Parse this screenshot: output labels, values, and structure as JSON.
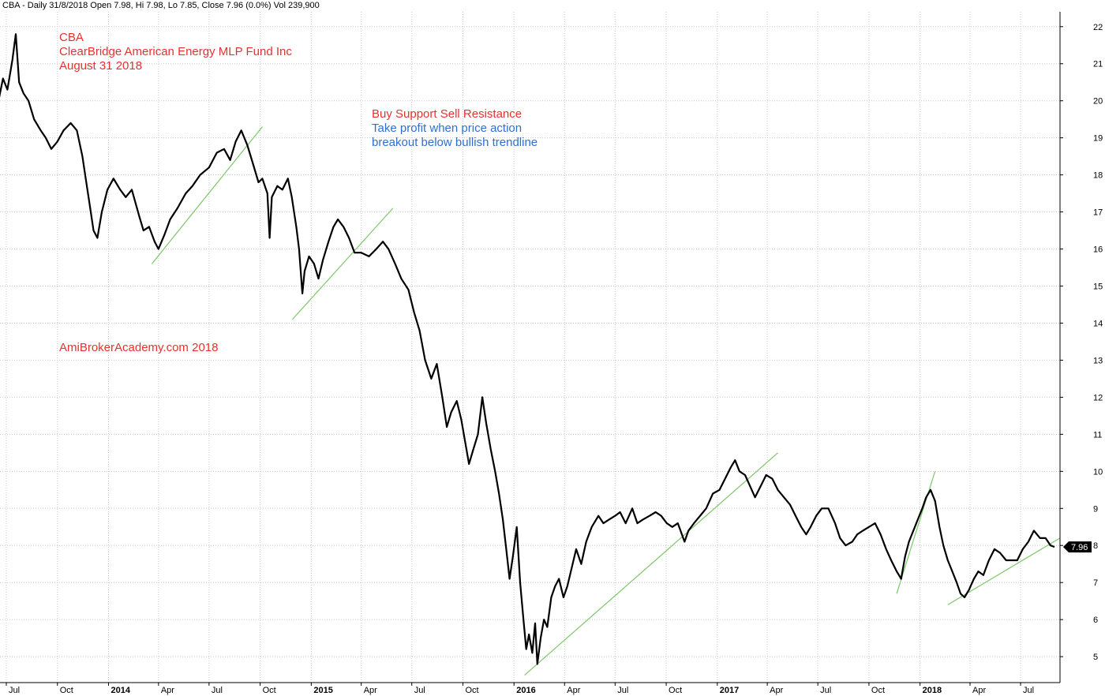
{
  "header": {
    "text": "CBA - Daily 31/8/2018 Open 7.98, Hi 7.98, Lo 7.85, Close 7.96 (0.0%) Vol 239,900"
  },
  "annotations": {
    "ticker": "CBA",
    "company": "ClearBridge American Energy MLP Fund Inc",
    "date": "August 31 2018",
    "strategy_line1": "Buy Support Sell Resistance",
    "strategy_line2": "Take profit when price action",
    "strategy_line3": "breakout below bullish trendline",
    "watermark": "AmiBrokerAcademy.com  2018"
  },
  "last_price_label": "7.96",
  "colors": {
    "price": "#000000",
    "trendline": "#7cc76a",
    "grid": "#c8c8c8",
    "annotation_red": "#e8312f",
    "annotation_blue": "#2f6fd0"
  },
  "chart_data": {
    "type": "line",
    "ylim": [
      4.3,
      22.4
    ],
    "y_ticks": [
      5,
      6,
      7,
      8,
      9,
      10,
      11,
      12,
      13,
      14,
      15,
      16,
      17,
      18,
      19,
      20,
      21,
      22
    ],
    "x_range": [
      "2013-07-01",
      "2018-09-10"
    ],
    "x_ticks": [
      {
        "label": "Jul",
        "date": "2013-07-01",
        "bold": false
      },
      {
        "label": "Oct",
        "date": "2013-10-01",
        "bold": false
      },
      {
        "label": "2014",
        "date": "2014-01-01",
        "bold": true
      },
      {
        "label": "Apr",
        "date": "2014-04-01",
        "bold": false
      },
      {
        "label": "Jul",
        "date": "2014-07-01",
        "bold": false
      },
      {
        "label": "Oct",
        "date": "2014-10-01",
        "bold": false
      },
      {
        "label": "2015",
        "date": "2015-01-01",
        "bold": true
      },
      {
        "label": "Apr",
        "date": "2015-04-01",
        "bold": false
      },
      {
        "label": "Jul",
        "date": "2015-07-01",
        "bold": false
      },
      {
        "label": "Oct",
        "date": "2015-10-01",
        "bold": false
      },
      {
        "label": "2016",
        "date": "2016-01-01",
        "bold": true
      },
      {
        "label": "Apr",
        "date": "2016-04-01",
        "bold": false
      },
      {
        "label": "Jul",
        "date": "2016-07-01",
        "bold": false
      },
      {
        "label": "Oct",
        "date": "2016-10-01",
        "bold": false
      },
      {
        "label": "2017",
        "date": "2017-01-01",
        "bold": true
      },
      {
        "label": "Apr",
        "date": "2017-04-01",
        "bold": false
      },
      {
        "label": "Jul",
        "date": "2017-07-01",
        "bold": false
      },
      {
        "label": "Oct",
        "date": "2017-10-01",
        "bold": false
      },
      {
        "label": "2018",
        "date": "2018-01-01",
        "bold": true
      },
      {
        "label": "Apr",
        "date": "2018-04-01",
        "bold": false
      },
      {
        "label": "Jul",
        "date": "2018-07-01",
        "bold": false
      }
    ],
    "series": [
      {
        "points": [
          [
            "2013-06-17",
            20.0
          ],
          [
            "2013-06-25",
            20.6
          ],
          [
            "2013-07-03",
            20.3
          ],
          [
            "2013-07-12",
            21.1
          ],
          [
            "2013-07-18",
            21.8
          ],
          [
            "2013-07-24",
            20.5
          ],
          [
            "2013-08-01",
            20.2
          ],
          [
            "2013-08-10",
            20.0
          ],
          [
            "2013-08-20",
            19.5
          ],
          [
            "2013-09-01",
            19.2
          ],
          [
            "2013-09-10",
            19.0
          ],
          [
            "2013-09-20",
            18.7
          ],
          [
            "2013-10-01",
            18.9
          ],
          [
            "2013-10-12",
            19.2
          ],
          [
            "2013-10-25",
            19.4
          ],
          [
            "2013-11-05",
            19.2
          ],
          [
            "2013-11-15",
            18.5
          ],
          [
            "2013-11-20",
            18.0
          ],
          [
            "2013-11-28",
            17.2
          ],
          [
            "2013-12-05",
            16.5
          ],
          [
            "2013-12-12",
            16.3
          ],
          [
            "2013-12-20",
            17.0
          ],
          [
            "2013-12-30",
            17.6
          ],
          [
            "2014-01-10",
            17.9
          ],
          [
            "2014-01-22",
            17.6
          ],
          [
            "2014-02-01",
            17.4
          ],
          [
            "2014-02-12",
            17.6
          ],
          [
            "2014-02-25",
            16.9
          ],
          [
            "2014-03-05",
            16.5
          ],
          [
            "2014-03-15",
            16.6
          ],
          [
            "2014-03-25",
            16.2
          ],
          [
            "2014-04-01",
            16.0
          ],
          [
            "2014-04-12",
            16.4
          ],
          [
            "2014-04-22",
            16.8
          ],
          [
            "2014-05-05",
            17.1
          ],
          [
            "2014-05-20",
            17.5
          ],
          [
            "2014-06-01",
            17.7
          ],
          [
            "2014-06-15",
            18.0
          ],
          [
            "2014-07-01",
            18.2
          ],
          [
            "2014-07-15",
            18.6
          ],
          [
            "2014-07-28",
            18.7
          ],
          [
            "2014-08-08",
            18.4
          ],
          [
            "2014-08-18",
            18.9
          ],
          [
            "2014-08-28",
            19.2
          ],
          [
            "2014-09-08",
            18.8
          ],
          [
            "2014-09-18",
            18.3
          ],
          [
            "2014-09-28",
            17.8
          ],
          [
            "2014-10-05",
            17.9
          ],
          [
            "2014-10-14",
            17.5
          ],
          [
            "2014-10-18",
            16.3
          ],
          [
            "2014-10-22",
            17.4
          ],
          [
            "2014-11-01",
            17.7
          ],
          [
            "2014-11-10",
            17.6
          ],
          [
            "2014-11-20",
            17.9
          ],
          [
            "2014-11-27",
            17.4
          ],
          [
            "2014-12-05",
            16.6
          ],
          [
            "2014-12-10",
            16.0
          ],
          [
            "2014-12-16",
            14.8
          ],
          [
            "2014-12-20",
            15.4
          ],
          [
            "2014-12-28",
            15.8
          ],
          [
            "2015-01-06",
            15.6
          ],
          [
            "2015-01-14",
            15.2
          ],
          [
            "2015-01-22",
            15.7
          ],
          [
            "2015-02-01",
            16.2
          ],
          [
            "2015-02-10",
            16.6
          ],
          [
            "2015-02-18",
            16.8
          ],
          [
            "2015-02-28",
            16.6
          ],
          [
            "2015-03-10",
            16.3
          ],
          [
            "2015-03-20",
            15.9
          ],
          [
            "2015-04-01",
            15.9
          ],
          [
            "2015-04-15",
            15.8
          ],
          [
            "2015-04-28",
            16.0
          ],
          [
            "2015-05-10",
            16.2
          ],
          [
            "2015-05-20",
            16.0
          ],
          [
            "2015-06-01",
            15.6
          ],
          [
            "2015-06-12",
            15.2
          ],
          [
            "2015-06-25",
            14.9
          ],
          [
            "2015-07-05",
            14.3
          ],
          [
            "2015-07-15",
            13.8
          ],
          [
            "2015-07-25",
            13.0
          ],
          [
            "2015-08-05",
            12.5
          ],
          [
            "2015-08-15",
            12.9
          ],
          [
            "2015-08-25",
            12.0
          ],
          [
            "2015-09-02",
            11.2
          ],
          [
            "2015-09-10",
            11.6
          ],
          [
            "2015-09-20",
            11.9
          ],
          [
            "2015-09-28",
            11.4
          ],
          [
            "2015-10-05",
            10.8
          ],
          [
            "2015-10-12",
            10.2
          ],
          [
            "2015-10-20",
            10.6
          ],
          [
            "2015-10-28",
            11.0
          ],
          [
            "2015-11-05",
            12.0
          ],
          [
            "2015-11-12",
            11.3
          ],
          [
            "2015-11-20",
            10.6
          ],
          [
            "2015-11-28",
            10.0
          ],
          [
            "2015-12-05",
            9.4
          ],
          [
            "2015-12-12",
            8.7
          ],
          [
            "2015-12-18",
            7.9
          ],
          [
            "2015-12-24",
            7.1
          ],
          [
            "2015-12-30",
            7.7
          ],
          [
            "2016-01-06",
            8.5
          ],
          [
            "2016-01-12",
            7.0
          ],
          [
            "2016-01-18",
            6.0
          ],
          [
            "2016-01-23",
            5.2
          ],
          [
            "2016-01-28",
            5.6
          ],
          [
            "2016-02-03",
            5.1
          ],
          [
            "2016-02-08",
            5.9
          ],
          [
            "2016-02-12",
            4.8
          ],
          [
            "2016-02-18",
            5.5
          ],
          [
            "2016-02-24",
            6.0
          ],
          [
            "2016-03-01",
            5.8
          ],
          [
            "2016-03-08",
            6.6
          ],
          [
            "2016-03-15",
            6.9
          ],
          [
            "2016-03-22",
            7.1
          ],
          [
            "2016-03-30",
            6.6
          ],
          [
            "2016-04-06",
            6.9
          ],
          [
            "2016-04-14",
            7.4
          ],
          [
            "2016-04-22",
            7.9
          ],
          [
            "2016-05-01",
            7.5
          ],
          [
            "2016-05-10",
            8.1
          ],
          [
            "2016-05-20",
            8.5
          ],
          [
            "2016-06-01",
            8.8
          ],
          [
            "2016-06-10",
            8.6
          ],
          [
            "2016-06-20",
            8.7
          ],
          [
            "2016-07-01",
            8.8
          ],
          [
            "2016-07-10",
            8.9
          ],
          [
            "2016-07-20",
            8.6
          ],
          [
            "2016-08-01",
            9.0
          ],
          [
            "2016-08-10",
            8.6
          ],
          [
            "2016-08-20",
            8.7
          ],
          [
            "2016-09-01",
            8.8
          ],
          [
            "2016-09-12",
            8.9
          ],
          [
            "2016-09-22",
            8.8
          ],
          [
            "2016-10-02",
            8.6
          ],
          [
            "2016-10-12",
            8.5
          ],
          [
            "2016-10-22",
            8.6
          ],
          [
            "2016-11-03",
            8.1
          ],
          [
            "2016-11-10",
            8.4
          ],
          [
            "2016-11-20",
            8.6
          ],
          [
            "2016-12-01",
            8.8
          ],
          [
            "2016-12-12",
            9.0
          ],
          [
            "2016-12-24",
            9.4
          ],
          [
            "2017-01-05",
            9.5
          ],
          [
            "2017-01-15",
            9.8
          ],
          [
            "2017-01-25",
            10.1
          ],
          [
            "2017-02-02",
            10.3
          ],
          [
            "2017-02-10",
            10.0
          ],
          [
            "2017-02-20",
            9.9
          ],
          [
            "2017-03-01",
            9.6
          ],
          [
            "2017-03-10",
            9.3
          ],
          [
            "2017-03-20",
            9.6
          ],
          [
            "2017-03-30",
            9.9
          ],
          [
            "2017-04-10",
            9.8
          ],
          [
            "2017-04-20",
            9.5
          ],
          [
            "2017-05-01",
            9.3
          ],
          [
            "2017-05-12",
            9.1
          ],
          [
            "2017-05-22",
            8.8
          ],
          [
            "2017-06-01",
            8.5
          ],
          [
            "2017-06-10",
            8.3
          ],
          [
            "2017-06-18",
            8.5
          ],
          [
            "2017-06-28",
            8.8
          ],
          [
            "2017-07-08",
            9.0
          ],
          [
            "2017-07-20",
            9.0
          ],
          [
            "2017-08-01",
            8.6
          ],
          [
            "2017-08-10",
            8.2
          ],
          [
            "2017-08-20",
            8.0
          ],
          [
            "2017-09-01",
            8.1
          ],
          [
            "2017-09-10",
            8.3
          ],
          [
            "2017-09-20",
            8.4
          ],
          [
            "2017-10-01",
            8.5
          ],
          [
            "2017-10-12",
            8.6
          ],
          [
            "2017-10-22",
            8.3
          ],
          [
            "2017-11-01",
            7.9
          ],
          [
            "2017-11-10",
            7.6
          ],
          [
            "2017-11-20",
            7.3
          ],
          [
            "2017-11-28",
            7.1
          ],
          [
            "2017-12-05",
            7.7
          ],
          [
            "2017-12-12",
            8.1
          ],
          [
            "2017-12-20",
            8.4
          ],
          [
            "2017-12-28",
            8.7
          ],
          [
            "2018-01-05",
            9.0
          ],
          [
            "2018-01-12",
            9.3
          ],
          [
            "2018-01-20",
            9.5
          ],
          [
            "2018-01-28",
            9.2
          ],
          [
            "2018-02-05",
            8.5
          ],
          [
            "2018-02-12",
            8.0
          ],
          [
            "2018-02-20",
            7.6
          ],
          [
            "2018-02-28",
            7.3
          ],
          [
            "2018-03-08",
            7.0
          ],
          [
            "2018-03-15",
            6.7
          ],
          [
            "2018-03-22",
            6.6
          ],
          [
            "2018-03-30",
            6.8
          ],
          [
            "2018-04-08",
            7.1
          ],
          [
            "2018-04-16",
            7.3
          ],
          [
            "2018-04-25",
            7.2
          ],
          [
            "2018-05-05",
            7.6
          ],
          [
            "2018-05-15",
            7.9
          ],
          [
            "2018-05-25",
            7.8
          ],
          [
            "2018-06-05",
            7.6
          ],
          [
            "2018-06-15",
            7.6
          ],
          [
            "2018-06-25",
            7.6
          ],
          [
            "2018-07-05",
            7.9
          ],
          [
            "2018-07-15",
            8.1
          ],
          [
            "2018-07-25",
            8.4
          ],
          [
            "2018-08-05",
            8.2
          ],
          [
            "2018-08-15",
            8.2
          ],
          [
            "2018-08-24",
            8.0
          ],
          [
            "2018-08-31",
            7.96
          ]
        ]
      }
    ],
    "trendlines": [
      {
        "start": [
          "2014-03-20",
          15.6
        ],
        "end": [
          "2014-10-05",
          19.3
        ]
      },
      {
        "start": [
          "2014-11-28",
          14.1
        ],
        "end": [
          "2015-05-28",
          17.1
        ]
      },
      {
        "start": [
          "2016-01-20",
          4.5
        ],
        "end": [
          "2017-04-20",
          10.5
        ]
      },
      {
        "start": [
          "2017-11-20",
          6.7
        ],
        "end": [
          "2018-01-28",
          10.0
        ]
      },
      {
        "start": [
          "2018-02-20",
          6.4
        ],
        "end": [
          "2018-09-10",
          8.2
        ]
      }
    ]
  }
}
